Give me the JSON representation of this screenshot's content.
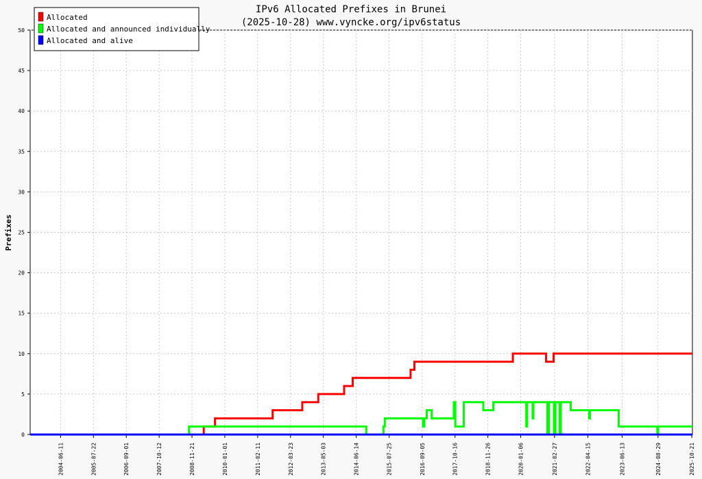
{
  "chart_data": {
    "type": "line",
    "title": "IPv6 Allocated Prefixes in Brunei",
    "subtitle": "(2025-10-28) www.vyncke.org/ipv6status",
    "xlabel": "",
    "ylabel": "Prefixes",
    "ylim": [
      0,
      50
    ],
    "yticks": [
      0,
      5,
      10,
      15,
      20,
      25,
      30,
      35,
      40,
      45,
      50
    ],
    "xlim": [
      "2003-06-01",
      "2025-10-28"
    ],
    "xticks": [
      "2004-06-11",
      "2005-07-22",
      "2006-09-01",
      "2007-10-12",
      "2008-11-21",
      "2010-01-01",
      "2011-02-11",
      "2012-03-23",
      "2013-05-03",
      "2014-06-14",
      "2015-07-25",
      "2016-09-05",
      "2017-10-16",
      "2018-11-26",
      "2020-01-06",
      "2021-02-27",
      "2022-04-15",
      "2023-06-13",
      "2024-08-29",
      "2025-10-21"
    ],
    "grid": true,
    "legend_position": "top-left",
    "series": [
      {
        "name": "Allocated",
        "color": "#ff0000",
        "points": [
          [
            "2003-06-01",
            0
          ],
          [
            "2009-04-15",
            0
          ],
          [
            "2009-04-15",
            1
          ],
          [
            "2009-09-01",
            1
          ],
          [
            "2009-09-01",
            2
          ],
          [
            "2011-08-15",
            2
          ],
          [
            "2011-08-15",
            3
          ],
          [
            "2012-08-15",
            3
          ],
          [
            "2012-08-15",
            4
          ],
          [
            "2013-03-01",
            4
          ],
          [
            "2013-03-01",
            5
          ],
          [
            "2014-01-15",
            5
          ],
          [
            "2014-01-15",
            6
          ],
          [
            "2014-05-01",
            6
          ],
          [
            "2014-05-01",
            7
          ],
          [
            "2016-04-15",
            7
          ],
          [
            "2016-04-15",
            8
          ],
          [
            "2016-06-01",
            8
          ],
          [
            "2016-06-01",
            9
          ],
          [
            "2019-10-01",
            9
          ],
          [
            "2019-10-01",
            10
          ],
          [
            "2020-11-15",
            10
          ],
          [
            "2020-11-15",
            9
          ],
          [
            "2021-02-15",
            9
          ],
          [
            "2021-02-15",
            10
          ],
          [
            "2025-10-28",
            10
          ]
        ]
      },
      {
        "name": "Allocated and announced individually",
        "color": "#00ff00",
        "points": [
          [
            "2003-06-01",
            0
          ],
          [
            "2008-10-15",
            0
          ],
          [
            "2008-10-15",
            1
          ],
          [
            "2014-10-15",
            1
          ],
          [
            "2014-10-15",
            0
          ],
          [
            "2015-05-15",
            0
          ],
          [
            "2015-05-15",
            1
          ],
          [
            "2015-06-01",
            1
          ],
          [
            "2015-06-01",
            2
          ],
          [
            "2016-09-15",
            2
          ],
          [
            "2016-09-15",
            1
          ],
          [
            "2016-10-01",
            1
          ],
          [
            "2016-10-01",
            2
          ],
          [
            "2016-11-01",
            2
          ],
          [
            "2016-11-01",
            3
          ],
          [
            "2017-01-01",
            3
          ],
          [
            "2017-01-01",
            2
          ],
          [
            "2017-10-01",
            2
          ],
          [
            "2017-10-01",
            4
          ],
          [
            "2017-10-20",
            4
          ],
          [
            "2017-10-20",
            1
          ],
          [
            "2018-02-01",
            1
          ],
          [
            "2018-02-01",
            4
          ],
          [
            "2018-10-01",
            4
          ],
          [
            "2018-10-01",
            3
          ],
          [
            "2019-02-01",
            3
          ],
          [
            "2019-02-01",
            4
          ],
          [
            "2020-03-15",
            4
          ],
          [
            "2020-03-15",
            1
          ],
          [
            "2020-03-25",
            1
          ],
          [
            "2020-03-25",
            4
          ],
          [
            "2020-06-01",
            4
          ],
          [
            "2020-06-01",
            2
          ],
          [
            "2020-06-10",
            2
          ],
          [
            "2020-06-10",
            4
          ],
          [
            "2020-12-01",
            4
          ],
          [
            "2020-12-01",
            0
          ],
          [
            "2020-12-20",
            0
          ],
          [
            "2020-12-20",
            4
          ],
          [
            "2021-02-20",
            4
          ],
          [
            "2021-02-20",
            0
          ],
          [
            "2021-03-10",
            0
          ],
          [
            "2021-03-10",
            4
          ],
          [
            "2021-05-01",
            4
          ],
          [
            "2021-05-01",
            0
          ],
          [
            "2021-05-15",
            0
          ],
          [
            "2021-05-15",
            4
          ],
          [
            "2021-09-15",
            4
          ],
          [
            "2021-09-15",
            3
          ],
          [
            "2022-05-01",
            3
          ],
          [
            "2022-05-01",
            2
          ],
          [
            "2022-05-10",
            2
          ],
          [
            "2022-05-10",
            3
          ],
          [
            "2023-05-01",
            3
          ],
          [
            "2023-05-01",
            1
          ],
          [
            "2024-08-20",
            1
          ],
          [
            "2024-08-20",
            0
          ],
          [
            "2024-08-30",
            0
          ],
          [
            "2024-08-30",
            1
          ],
          [
            "2025-10-28",
            1
          ]
        ]
      },
      {
        "name": "Allocated and alive",
        "color": "#0000ff",
        "points": [
          [
            "2003-06-01",
            0
          ],
          [
            "2025-10-28",
            0
          ]
        ]
      }
    ]
  }
}
